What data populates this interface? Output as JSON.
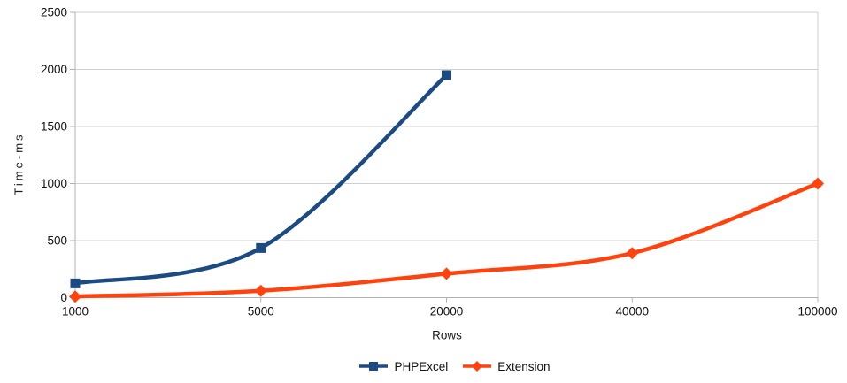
{
  "chart_data": {
    "type": "line",
    "title": "",
    "xlabel": "Rows",
    "ylabel": "Time-ms",
    "categories": [
      "1000",
      "5000",
      "20000",
      "40000",
      "100000"
    ],
    "yticks": [
      0,
      500,
      1000,
      1500,
      2000,
      2500
    ],
    "ylim": [
      0,
      2500
    ],
    "grid": "horizontal-only",
    "smooth_lines": true,
    "legend_position": "bottom-center",
    "series": [
      {
        "name": "PHPExcel",
        "color": "#1c4b82",
        "marker": "square",
        "values": [
          125,
          435,
          1950
        ]
      },
      {
        "name": "Extension",
        "color": "#ff420e",
        "marker": "diamond",
        "values": [
          10,
          60,
          210,
          390,
          1000
        ]
      }
    ],
    "colors": {
      "grid": "#cfcfcf",
      "axis": "#b0b0b0",
      "text": "#111111",
      "background": "#ffffff"
    }
  }
}
